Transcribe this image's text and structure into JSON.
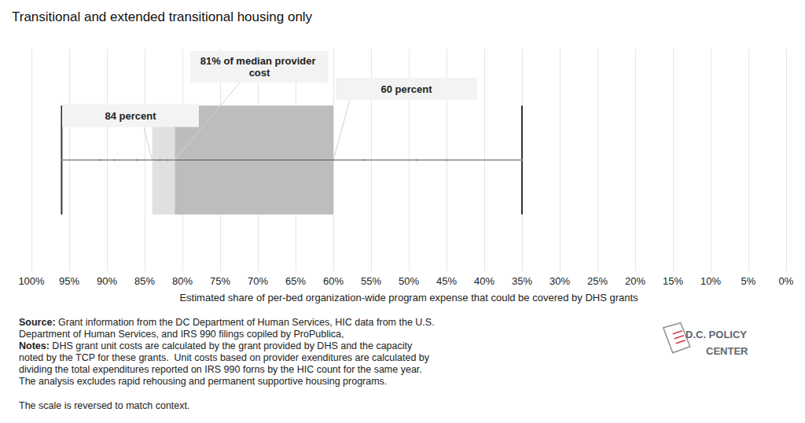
{
  "chart_data": {
    "type": "boxplot",
    "title": "Transitional and extended transitional housing only",
    "xlabel": "Estimated share of per-bed organization-wide program expense that could be covered by DHS grants",
    "box": {
      "low": 35,
      "q1": 60,
      "median": 81,
      "q3": 84,
      "high": 96
    },
    "points": [
      96,
      91,
      89,
      86,
      83,
      82,
      78,
      70,
      65,
      60,
      56,
      49,
      45,
      35
    ],
    "color": "#bdbdbd",
    "colors": [
      "#e0e0e0",
      "#bdbdbd"
    ],
    "annotations": [
      {
        "text": "84 percent",
        "value": 84
      },
      {
        "text": "81% of median provider cost",
        "value": 81
      },
      {
        "text": "60 percent",
        "value": 60
      }
    ],
    "xlim": [
      100,
      0
    ],
    "xticks": [
      {
        "value": 100,
        "label": "100%"
      },
      {
        "value": 95,
        "label": "95%"
      },
      {
        "value": 90,
        "label": "90%"
      },
      {
        "value": 85,
        "label": "85%"
      },
      {
        "value": 80,
        "label": "80%"
      },
      {
        "value": 75,
        "label": "75%"
      },
      {
        "value": 70,
        "label": "70%"
      },
      {
        "value": 65,
        "label": "65%"
      },
      {
        "value": 60,
        "label": "60%"
      },
      {
        "value": 55,
        "label": "55%"
      },
      {
        "value": 50,
        "label": "50%"
      },
      {
        "value": 45,
        "label": "45%"
      },
      {
        "value": 40,
        "label": "40%"
      },
      {
        "value": 35,
        "label": "35%"
      },
      {
        "value": 30,
        "label": "30%"
      },
      {
        "value": 25,
        "label": "25%"
      },
      {
        "value": 20,
        "label": "20%"
      },
      {
        "value": 15,
        "label": "15%"
      },
      {
        "value": 10,
        "label": "10%"
      },
      {
        "value": 5,
        "label": "5%"
      },
      {
        "value": 0,
        "label": "0%"
      }
    ],
    "grid": true,
    "source_label": "Source:",
    "source": [
      "Grant information from the DC Department of Human Services, HIC data from the U.S.",
      "Department of Human Services, and IRS 990 filings copiled by ProPublica,"
    ],
    "notes_label": "Notes:",
    "notes": [
      "DHS grant unit costs are calculated by the grant provided by DHS and the capacity",
      "noted by the TCP for these grants.  Unit costs based on provider exenditures are calculated by",
      "dividing the total expenditures reported on IRS 990 forns by the HIC count for the same year.",
      "The analysis excludes rapid rehousing and permanent supportive housing programs."
    ],
    "footnote": "The scale is reversed to match context.",
    "logo": [
      "D.C. POLICY",
      "CENTER"
    ]
  }
}
